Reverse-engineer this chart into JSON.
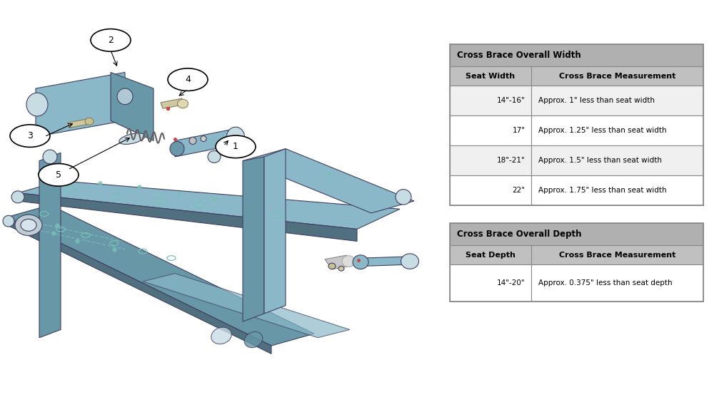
{
  "bg_color": "#ffffff",
  "table1": {
    "title": "Cross Brace Overall Width",
    "header": [
      "Seat Width",
      "Cross Brace Measurement"
    ],
    "rows": [
      [
        "14\"-16\"",
        "Approx. 1\" less than seat width"
      ],
      [
        "17\"",
        "Approx. 1.25\" less than seat width"
      ],
      [
        "18\"-21\"",
        "Approx. 1.5\" less than seat width"
      ],
      [
        "22\"",
        "Approx. 1.75\" less than seat width"
      ]
    ],
    "header_bg": "#c0c0c0",
    "title_bg": "#b0b0b0",
    "row_bg_alt": "#f0f0f0",
    "row_bg": "#ffffff",
    "border_color": "#888888"
  },
  "table2": {
    "title": "Cross Brace Overall Depth",
    "header": [
      "Seat Depth",
      "Cross Brace Measurement"
    ],
    "rows": [
      [
        "14\"-20\"",
        "Approx. 0.375\" less than seat depth"
      ]
    ],
    "header_bg": "#c0c0c0",
    "title_bg": "#b0b0b0",
    "row_bg": "#ffffff",
    "border_color": "#888888"
  }
}
